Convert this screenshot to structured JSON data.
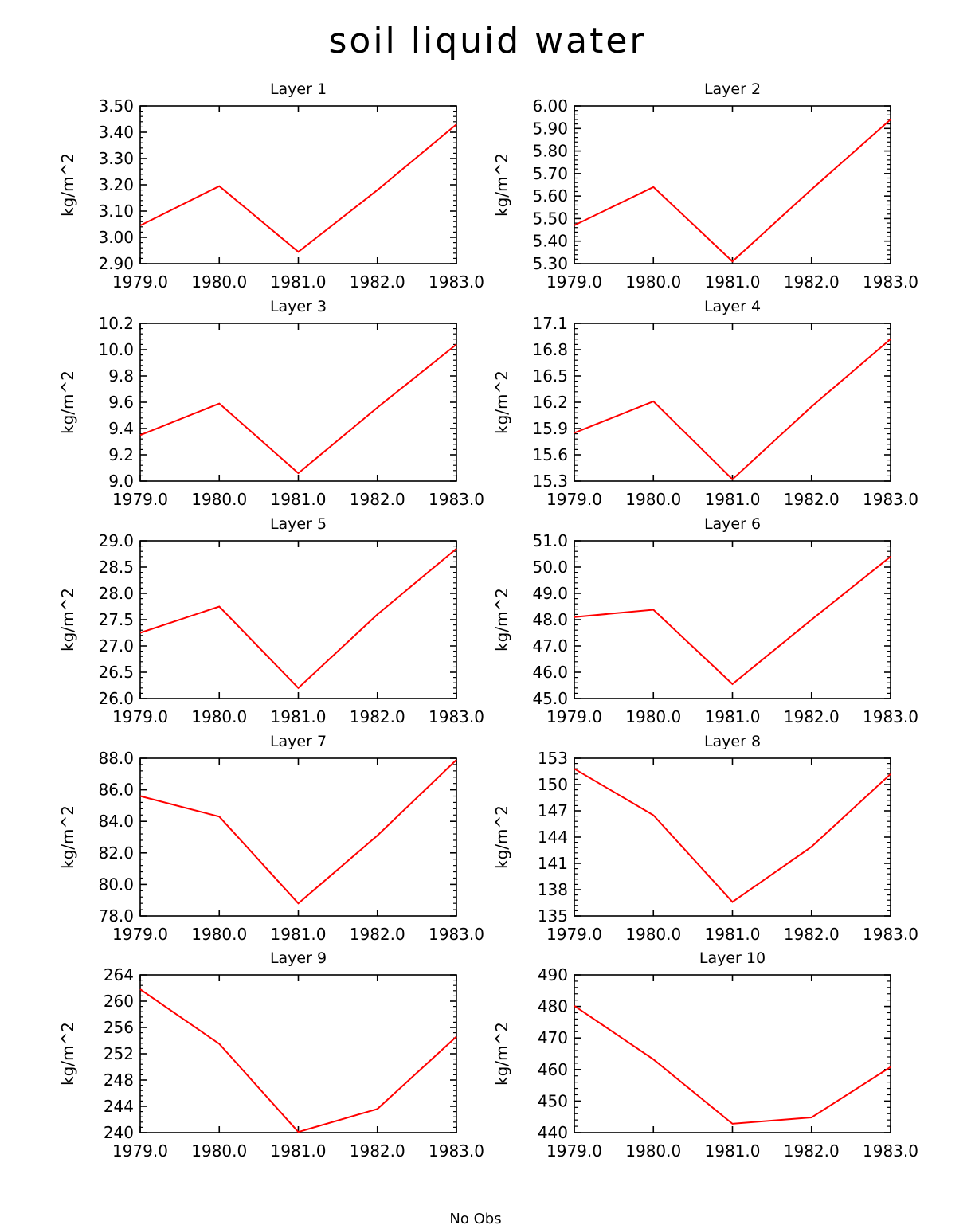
{
  "figure": {
    "title": "soil liquid water",
    "footer": "No Obs",
    "line_color": "#ff0000"
  },
  "chart_data": [
    {
      "type": "line",
      "title": "Layer 1",
      "ylabel": "kg/m^2",
      "x": [
        1979.0,
        1980.0,
        1981.0,
        1982.0,
        1983.0
      ],
      "xlim": [
        1979.0,
        1983.0
      ],
      "xticklabels": [
        "1979.0",
        "1980.0",
        "1981.0",
        "1982.0",
        "1983.0"
      ],
      "y": [
        3.045,
        3.195,
        2.945,
        3.18,
        3.43
      ],
      "ylim": [
        2.9,
        3.5
      ],
      "yticks": [
        2.9,
        3.0,
        3.1,
        3.2,
        3.3,
        3.4,
        3.5
      ],
      "yticklabels": [
        "2.90",
        "3.00",
        "3.10",
        "3.20",
        "3.30",
        "3.40",
        "3.50"
      ]
    },
    {
      "type": "line",
      "title": "Layer 2",
      "ylabel": "kg/m^2",
      "x": [
        1979.0,
        1980.0,
        1981.0,
        1982.0,
        1983.0
      ],
      "xlim": [
        1979.0,
        1983.0
      ],
      "xticklabels": [
        "1979.0",
        "1980.0",
        "1981.0",
        "1982.0",
        "1983.0"
      ],
      "y": [
        5.47,
        5.64,
        5.31,
        5.63,
        5.94
      ],
      "ylim": [
        5.3,
        6.0
      ],
      "yticks": [
        5.3,
        5.4,
        5.5,
        5.6,
        5.7,
        5.8,
        5.9,
        6.0
      ],
      "yticklabels": [
        "5.30",
        "5.40",
        "5.50",
        "5.60",
        "5.70",
        "5.80",
        "5.90",
        "6.00"
      ]
    },
    {
      "type": "line",
      "title": "Layer 3",
      "ylabel": "kg/m^2",
      "x": [
        1979.0,
        1980.0,
        1981.0,
        1982.0,
        1983.0
      ],
      "xlim": [
        1979.0,
        1983.0
      ],
      "xticklabels": [
        "1979.0",
        "1980.0",
        "1981.0",
        "1982.0",
        "1983.0"
      ],
      "y": [
        9.35,
        9.59,
        9.06,
        9.56,
        10.04
      ],
      "ylim": [
        9.0,
        10.2
      ],
      "yticks": [
        9.0,
        9.2,
        9.4,
        9.6,
        9.8,
        10.0,
        10.2
      ],
      "yticklabels": [
        "9.0",
        "9.2",
        "9.4",
        "9.6",
        "9.8",
        "10.0",
        "10.2"
      ]
    },
    {
      "type": "line",
      "title": "Layer 4",
      "ylabel": "kg/m^2",
      "x": [
        1979.0,
        1980.0,
        1981.0,
        1982.0,
        1983.0
      ],
      "xlim": [
        1979.0,
        1983.0
      ],
      "xticklabels": [
        "1979.0",
        "1980.0",
        "1981.0",
        "1982.0",
        "1983.0"
      ],
      "y": [
        15.85,
        16.21,
        15.32,
        16.15,
        16.92
      ],
      "ylim": [
        15.3,
        17.1
      ],
      "yticks": [
        15.3,
        15.6,
        15.9,
        16.2,
        16.5,
        16.8,
        17.1
      ],
      "yticklabels": [
        "15.3",
        "15.6",
        "15.9",
        "16.2",
        "16.5",
        "16.8",
        "17.1"
      ]
    },
    {
      "type": "line",
      "title": "Layer 5",
      "ylabel": "kg/m^2",
      "x": [
        1979.0,
        1980.0,
        1981.0,
        1982.0,
        1983.0
      ],
      "xlim": [
        1979.0,
        1983.0
      ],
      "xticklabels": [
        "1979.0",
        "1980.0",
        "1981.0",
        "1982.0",
        "1983.0"
      ],
      "y": [
        27.25,
        27.75,
        26.2,
        27.6,
        28.85
      ],
      "ylim": [
        26.0,
        29.0
      ],
      "yticks": [
        26.0,
        26.5,
        27.0,
        27.5,
        28.0,
        28.5,
        29.0
      ],
      "yticklabels": [
        "26.0",
        "26.5",
        "27.0",
        "27.5",
        "28.0",
        "28.5",
        "29.0"
      ]
    },
    {
      "type": "line",
      "title": "Layer 6",
      "ylabel": "kg/m^2",
      "x": [
        1979.0,
        1980.0,
        1981.0,
        1982.0,
        1983.0
      ],
      "xlim": [
        1979.0,
        1983.0
      ],
      "xticklabels": [
        "1979.0",
        "1980.0",
        "1981.0",
        "1982.0",
        "1983.0"
      ],
      "y": [
        48.1,
        48.38,
        45.55,
        48.0,
        50.4
      ],
      "ylim": [
        45.0,
        51.0
      ],
      "yticks": [
        45.0,
        46.0,
        47.0,
        48.0,
        49.0,
        50.0,
        51.0
      ],
      "yticklabels": [
        "45.0",
        "46.0",
        "47.0",
        "48.0",
        "49.0",
        "50.0",
        "51.0"
      ]
    },
    {
      "type": "line",
      "title": "Layer 7",
      "ylabel": "kg/m^2",
      "x": [
        1979.0,
        1980.0,
        1981.0,
        1982.0,
        1983.0
      ],
      "xlim": [
        1979.0,
        1983.0
      ],
      "xticklabels": [
        "1979.0",
        "1980.0",
        "1981.0",
        "1982.0",
        "1983.0"
      ],
      "y": [
        85.6,
        84.3,
        78.8,
        83.1,
        87.9
      ],
      "ylim": [
        78.0,
        88.0
      ],
      "yticks": [
        78.0,
        80.0,
        82.0,
        84.0,
        86.0,
        88.0
      ],
      "yticklabels": [
        "78.0",
        "80.0",
        "82.0",
        "84.0",
        "86.0",
        "88.0"
      ]
    },
    {
      "type": "line",
      "title": "Layer 8",
      "ylabel": "kg/m^2",
      "x": [
        1979.0,
        1980.0,
        1981.0,
        1982.0,
        1983.0
      ],
      "xlim": [
        1979.0,
        1983.0
      ],
      "xticklabels": [
        "1979.0",
        "1980.0",
        "1981.0",
        "1982.0",
        "1983.0"
      ],
      "y": [
        151.8,
        146.5,
        136.6,
        142.9,
        151.2
      ],
      "ylim": [
        135,
        153
      ],
      "yticks": [
        135,
        138,
        141,
        144,
        147,
        150,
        153
      ],
      "yticklabels": [
        "135",
        "138",
        "141",
        "144",
        "147",
        "150",
        "153"
      ]
    },
    {
      "type": "line",
      "title": "Layer 9",
      "ylabel": "kg/m^2",
      "x": [
        1979.0,
        1980.0,
        1981.0,
        1982.0,
        1983.0
      ],
      "xlim": [
        1979.0,
        1983.0
      ],
      "xticklabels": [
        "1979.0",
        "1980.0",
        "1981.0",
        "1982.0",
        "1983.0"
      ],
      "y": [
        261.8,
        253.5,
        240.1,
        243.6,
        254.6
      ],
      "ylim": [
        240,
        264
      ],
      "yticks": [
        240,
        244,
        248,
        252,
        256,
        260,
        264
      ],
      "yticklabels": [
        "240",
        "244",
        "248",
        "252",
        "256",
        "260",
        "264"
      ]
    },
    {
      "type": "line",
      "title": "Layer 10",
      "ylabel": "kg/m^2",
      "x": [
        1979.0,
        1980.0,
        1981.0,
        1982.0,
        1983.0
      ],
      "xlim": [
        1979.0,
        1983.0
      ],
      "xticklabels": [
        "1979.0",
        "1980.0",
        "1981.0",
        "1982.0",
        "1983.0"
      ],
      "y": [
        480.2,
        463.2,
        442.8,
        444.8,
        460.8
      ],
      "ylim": [
        440,
        490
      ],
      "yticks": [
        440,
        450,
        460,
        470,
        480,
        490
      ],
      "yticklabels": [
        "440",
        "450",
        "460",
        "470",
        "480",
        "490"
      ]
    }
  ]
}
